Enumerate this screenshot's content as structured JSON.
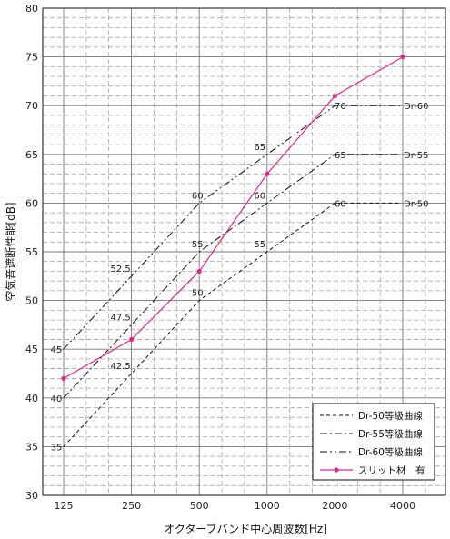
{
  "chart_data": {
    "type": "line",
    "xlabel": "オクターブバンド中心周波数[Hz]",
    "ylabel": "空気音遮断性能[dB]",
    "categories": [
      "125",
      "250",
      "500",
      "1000",
      "2000",
      "4000"
    ],
    "y_ticks": [
      "30",
      "35",
      "40",
      "45",
      "50",
      "55",
      "60",
      "65",
      "70",
      "75",
      "80"
    ],
    "ylim": [
      30,
      80
    ],
    "grid": true,
    "legend_position": "bottom-right",
    "colors": {
      "measured": "#e0288c",
      "reference": "#111111",
      "grid": "#888888"
    },
    "series": [
      {
        "name": "Dr-50等級曲線",
        "style": "dashed",
        "values": [
          35,
          42.5,
          50,
          55,
          60,
          60
        ],
        "point_labels": [
          "35",
          "42.5",
          "50",
          "55",
          "60",
          ""
        ],
        "end_label": "Dr-50"
      },
      {
        "name": "Dr-55等級曲線",
        "style": "dashdot",
        "values": [
          40,
          47.5,
          55,
          60,
          65,
          65
        ],
        "point_labels": [
          "40",
          "47.5",
          "55",
          "60",
          "65",
          ""
        ],
        "end_label": "Dr-55"
      },
      {
        "name": "Dr-60等級曲線",
        "style": "dashdotdot",
        "values": [
          45,
          52.5,
          60,
          65,
          70,
          70
        ],
        "point_labels": [
          "45",
          "52.5",
          "60",
          "65",
          "70",
          ""
        ],
        "end_label": "Dr-60"
      },
      {
        "name": "スリット材　有",
        "style": "solid-marker",
        "values": [
          42,
          46,
          53,
          63,
          71,
          75
        ]
      }
    ]
  }
}
